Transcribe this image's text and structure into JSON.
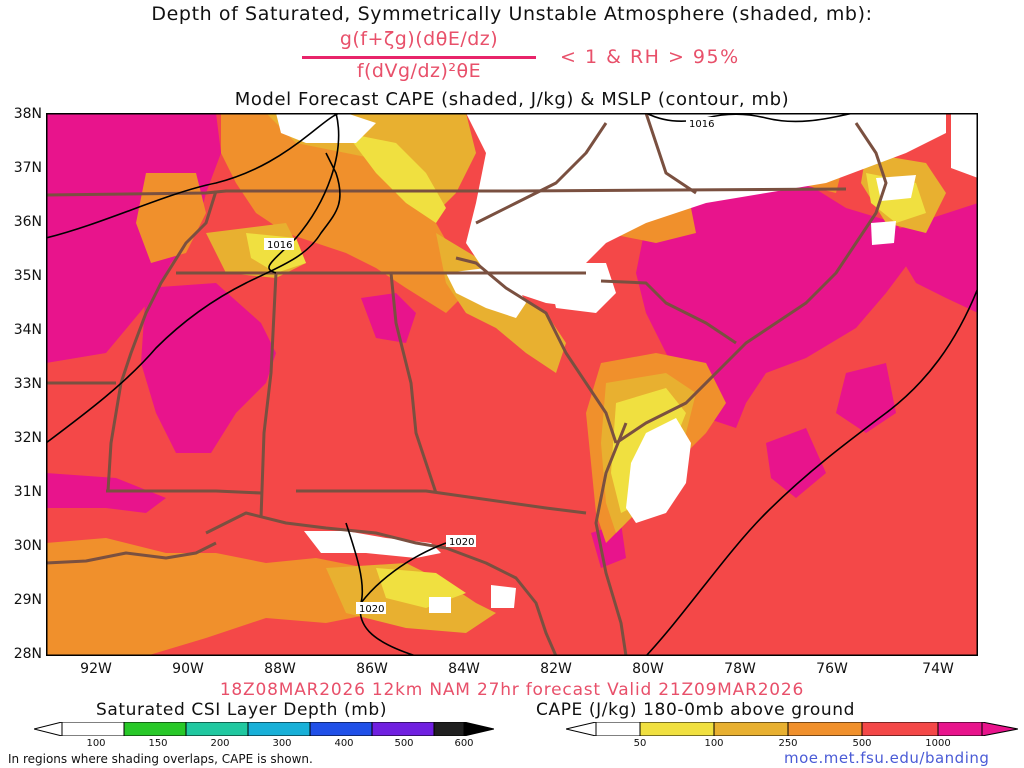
{
  "header": {
    "title_line1": "Depth of Saturated, Symmetrically Unstable Atmosphere (shaded, mb):",
    "equation_numerator": "g(f+ζg)(dθE/dz)",
    "equation_denominator": "f(dVg/dz)²θE",
    "condition": "< 1 & RH > 95%",
    "title_line3": "Model Forecast CAPE (shaded, J/kg) & MSLP (contour, mb)"
  },
  "map": {
    "lat_labels": [
      "38N",
      "37N",
      "36N",
      "35N",
      "34N",
      "33N",
      "32N",
      "31N",
      "30N",
      "29N",
      "28N"
    ],
    "lon_labels": [
      "92W",
      "90W",
      "88W",
      "86W",
      "84W",
      "82W",
      "80W",
      "78W",
      "76W",
      "74W"
    ],
    "isobar_labels": [
      "1016",
      "1016",
      "1020",
      "1020"
    ],
    "colors": {
      "cape_low": "#f0e040",
      "cape_100": "#e8b030",
      "cape_250": "#f0902c",
      "cape_500": "#f44848",
      "cape_1000": "#e8148c",
      "state_lines": "#7a5040",
      "isobars": "#000000"
    }
  },
  "footer": {
    "forecast_line": "18Z08MAR2026 12km NAM 27hr forecast Valid 21Z09MAR2026",
    "csi_colorbar_title": "Saturated CSI Layer Depth (mb)",
    "csi_ticks": [
      "100",
      "150",
      "200",
      "300",
      "400",
      "500",
      "600"
    ],
    "cape_colorbar_title": "CAPE (J/kg) 180-0mb above ground",
    "cape_ticks": [
      "50",
      "100",
      "250",
      "500",
      "1000"
    ],
    "note": "In regions where shading overlaps, CAPE is shown.",
    "url": "moe.met.fsu.edu/banding"
  }
}
